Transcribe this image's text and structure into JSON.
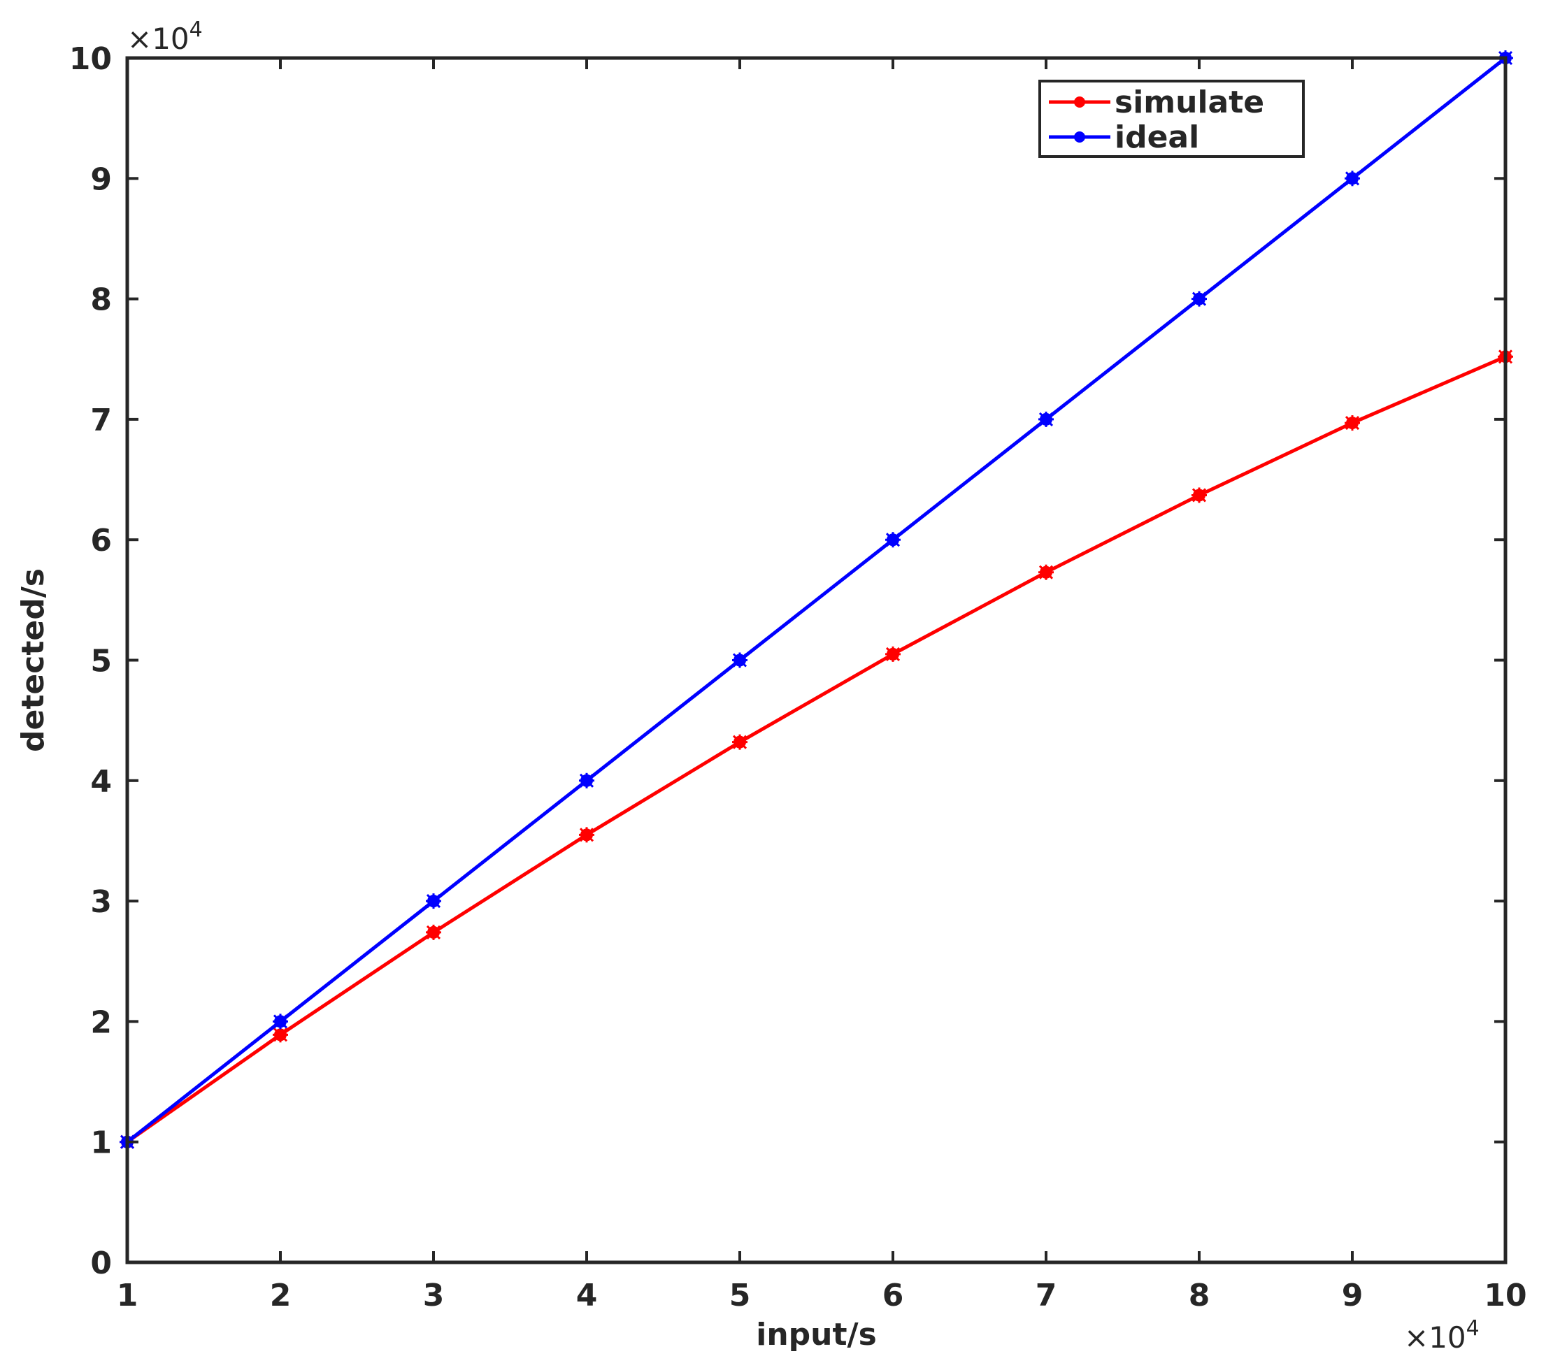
{
  "chart_data": {
    "type": "line",
    "title": "",
    "xlabel": "input/s",
    "ylabel": "detected/s",
    "x_multiplier": "×10",
    "x_multiplier_exp": "4",
    "y_multiplier": "×10",
    "y_multiplier_exp": "4",
    "xlim": [
      10000,
      100000
    ],
    "ylim": [
      0,
      100000
    ],
    "x_ticks": [
      10000,
      20000,
      30000,
      40000,
      50000,
      60000,
      70000,
      80000,
      90000,
      100000
    ],
    "x_tick_labels": [
      "1",
      "2",
      "3",
      "4",
      "5",
      "6",
      "7",
      "8",
      "9",
      "10"
    ],
    "y_ticks": [
      0,
      10000,
      20000,
      30000,
      40000,
      50000,
      60000,
      70000,
      80000,
      90000,
      100000
    ],
    "y_tick_labels": [
      "0",
      "1",
      "2",
      "3",
      "4",
      "5",
      "6",
      "7",
      "8",
      "9",
      "10"
    ],
    "grid": false,
    "legend_position": "top-right",
    "x": [
      10000,
      20000,
      30000,
      40000,
      50000,
      60000,
      70000,
      80000,
      90000,
      100000
    ],
    "series": [
      {
        "name": "simulate",
        "color": "#ff0000",
        "values": [
          10000,
          18900,
          27400,
          35500,
          43200,
          50500,
          57300,
          63700,
          69700,
          75200
        ]
      },
      {
        "name": "ideal",
        "color": "#0000ff",
        "values": [
          10000,
          20000,
          30000,
          40000,
          50000,
          60000,
          70000,
          80000,
          90000,
          100000
        ]
      }
    ]
  }
}
